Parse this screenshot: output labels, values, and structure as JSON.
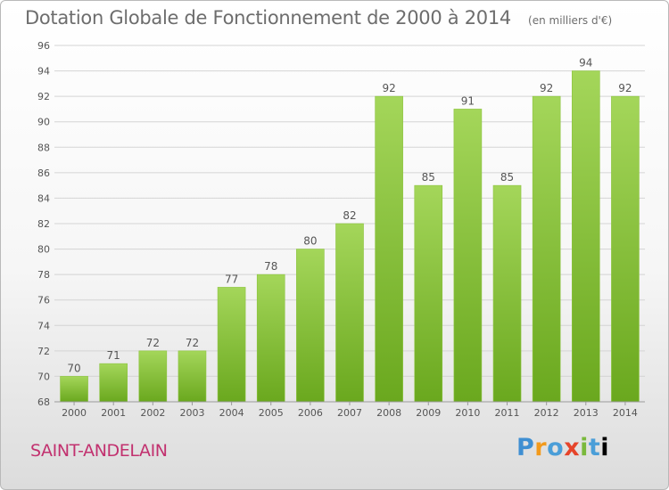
{
  "header": {
    "title": "Dotation Globale de Fonctionnement de 2000 à 2014",
    "subtitle": "(en milliers d'€)"
  },
  "footer": {
    "commune": "SAINT-ANDELAIN",
    "logo": [
      "P",
      "r",
      "o",
      "x",
      "i",
      "t",
      "i"
    ]
  },
  "colors": {
    "bar_light": "#a4d65a",
    "bar_dark": "#6aa81e",
    "grid": "#d4d4d4",
    "axis_text": "#555555",
    "title": "#6d6d6d",
    "commune": "#c2316f"
  },
  "chart_data": {
    "type": "bar",
    "title": "Dotation Globale de Fonctionnement de 2000 à 2014",
    "subtitle": "(en milliers d'€)",
    "categories": [
      "2000",
      "2001",
      "2002",
      "2003",
      "2004",
      "2005",
      "2006",
      "2007",
      "2008",
      "2009",
      "2010",
      "2011",
      "2012",
      "2013",
      "2014"
    ],
    "values": [
      70,
      71,
      72,
      72,
      77,
      78,
      80,
      82,
      92,
      85,
      91,
      85,
      92,
      94,
      92
    ],
    "ylim": [
      68,
      96
    ],
    "yticks": [
      68,
      70,
      72,
      74,
      76,
      78,
      80,
      82,
      84,
      86,
      88,
      90,
      92,
      94,
      96
    ],
    "grid": true,
    "data_labels": true
  }
}
